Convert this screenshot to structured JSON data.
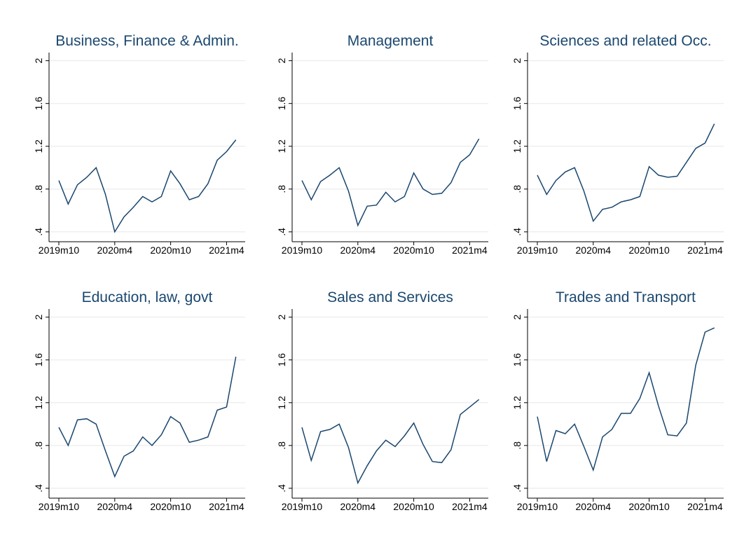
{
  "chart_data": [
    {
      "type": "line",
      "title": "Business, Finance & Admin.",
      "categories": [
        "2019m10",
        null,
        null,
        null,
        null,
        null,
        "2020m4",
        null,
        null,
        null,
        null,
        null,
        "2020m10",
        null,
        null,
        null,
        null,
        null,
        "2021m4",
        null
      ],
      "values": [
        0.88,
        0.66,
        0.84,
        0.91,
        1.0,
        0.75,
        0.4,
        0.54,
        0.63,
        0.73,
        0.68,
        0.73,
        0.97,
        0.85,
        0.7,
        0.73,
        0.85,
        1.07,
        1.15,
        1.26
      ],
      "color": "#1a476f",
      "ylim": [
        0.36,
        2.05
      ],
      "yticks": [
        {
          "value": 0.4,
          "label": ".4"
        },
        {
          "value": 0.8,
          "label": ".8"
        },
        1.2,
        1.6,
        2
      ],
      "grid": true
    },
    {
      "type": "line",
      "title": "Management",
      "categories": [
        "2019m10",
        null,
        null,
        null,
        null,
        null,
        "2020m4",
        null,
        null,
        null,
        null,
        null,
        "2020m10",
        null,
        null,
        null,
        null,
        null,
        "2021m4",
        null
      ],
      "values": [
        0.88,
        0.7,
        0.87,
        0.93,
        1.0,
        0.78,
        0.46,
        0.64,
        0.65,
        0.77,
        0.68,
        0.73,
        0.95,
        0.8,
        0.75,
        0.76,
        0.86,
        1.05,
        1.12,
        1.27
      ],
      "color": "#1a476f",
      "ylim": [
        0.36,
        2.05
      ],
      "yticks": [
        {
          "value": 0.4,
          "label": ".4"
        },
        {
          "value": 0.8,
          "label": ".8"
        },
        1.2,
        1.6,
        2
      ],
      "grid": true
    },
    {
      "type": "line",
      "title": "Sciences and related Occ.",
      "categories": [
        "2019m10",
        null,
        null,
        null,
        null,
        null,
        "2020m4",
        null,
        null,
        null,
        null,
        null,
        "2020m10",
        null,
        null,
        null,
        null,
        null,
        "2021m4",
        null
      ],
      "values": [
        0.93,
        0.75,
        0.88,
        0.96,
        1.0,
        0.78,
        0.5,
        0.61,
        0.63,
        0.68,
        0.7,
        0.73,
        1.01,
        0.93,
        0.91,
        0.92,
        1.05,
        1.18,
        1.23,
        1.41
      ],
      "color": "#1a476f",
      "ylim": [
        0.36,
        2.05
      ],
      "yticks": [
        {
          "value": 0.4,
          "label": ".4"
        },
        {
          "value": 0.8,
          "label": ".8"
        },
        1.2,
        1.6,
        2
      ],
      "grid": true
    },
    {
      "type": "line",
      "title": "Education, law, govt",
      "categories": [
        "2019m10",
        null,
        null,
        null,
        null,
        null,
        "2020m4",
        null,
        null,
        null,
        null,
        null,
        "2020m10",
        null,
        null,
        null,
        null,
        null,
        "2021m4",
        null
      ],
      "values": [
        0.97,
        0.8,
        1.04,
        1.05,
        1.0,
        0.75,
        0.51,
        0.7,
        0.75,
        0.88,
        0.8,
        0.9,
        1.07,
        1.01,
        0.83,
        0.85,
        0.88,
        1.13,
        1.16,
        1.63
      ],
      "color": "#1a476f",
      "ylim": [
        0.36,
        2.05
      ],
      "yticks": [
        {
          "value": 0.4,
          "label": ".4"
        },
        {
          "value": 0.8,
          "label": ".8"
        },
        1.2,
        1.6,
        2
      ],
      "grid": true
    },
    {
      "type": "line",
      "title": "Sales and Services",
      "categories": [
        "2019m10",
        null,
        null,
        null,
        null,
        null,
        "2020m4",
        null,
        null,
        null,
        null,
        null,
        "2020m10",
        null,
        null,
        null,
        null,
        null,
        "2021m4",
        null
      ],
      "values": [
        0.97,
        0.66,
        0.93,
        0.95,
        1.0,
        0.78,
        0.45,
        0.61,
        0.75,
        0.85,
        0.79,
        0.89,
        1.01,
        0.81,
        0.65,
        0.64,
        0.76,
        1.09,
        1.16,
        1.23
      ],
      "color": "#1a476f",
      "ylim": [
        0.36,
        2.05
      ],
      "yticks": [
        {
          "value": 0.4,
          "label": ".4"
        },
        {
          "value": 0.8,
          "label": ".8"
        },
        1.2,
        1.6,
        2
      ],
      "grid": true
    },
    {
      "type": "line",
      "title": "Trades and Transport",
      "categories": [
        "2019m10",
        null,
        null,
        null,
        null,
        null,
        "2020m4",
        null,
        null,
        null,
        null,
        null,
        "2020m10",
        null,
        null,
        null,
        null,
        null,
        "2021m4",
        null
      ],
      "values": [
        1.07,
        0.65,
        0.94,
        0.91,
        1.0,
        0.79,
        0.57,
        0.88,
        0.95,
        1.1,
        1.1,
        1.24,
        1.48,
        1.17,
        0.9,
        0.89,
        1.01,
        1.55,
        1.86,
        1.9
      ],
      "color": "#1a476f",
      "ylim": [
        0.36,
        2.05
      ],
      "yticks": [
        {
          "value": 0.4,
          "label": ".4"
        },
        {
          "value": 0.8,
          "label": ".8"
        },
        1.2,
        1.6,
        2
      ],
      "grid": true
    }
  ]
}
